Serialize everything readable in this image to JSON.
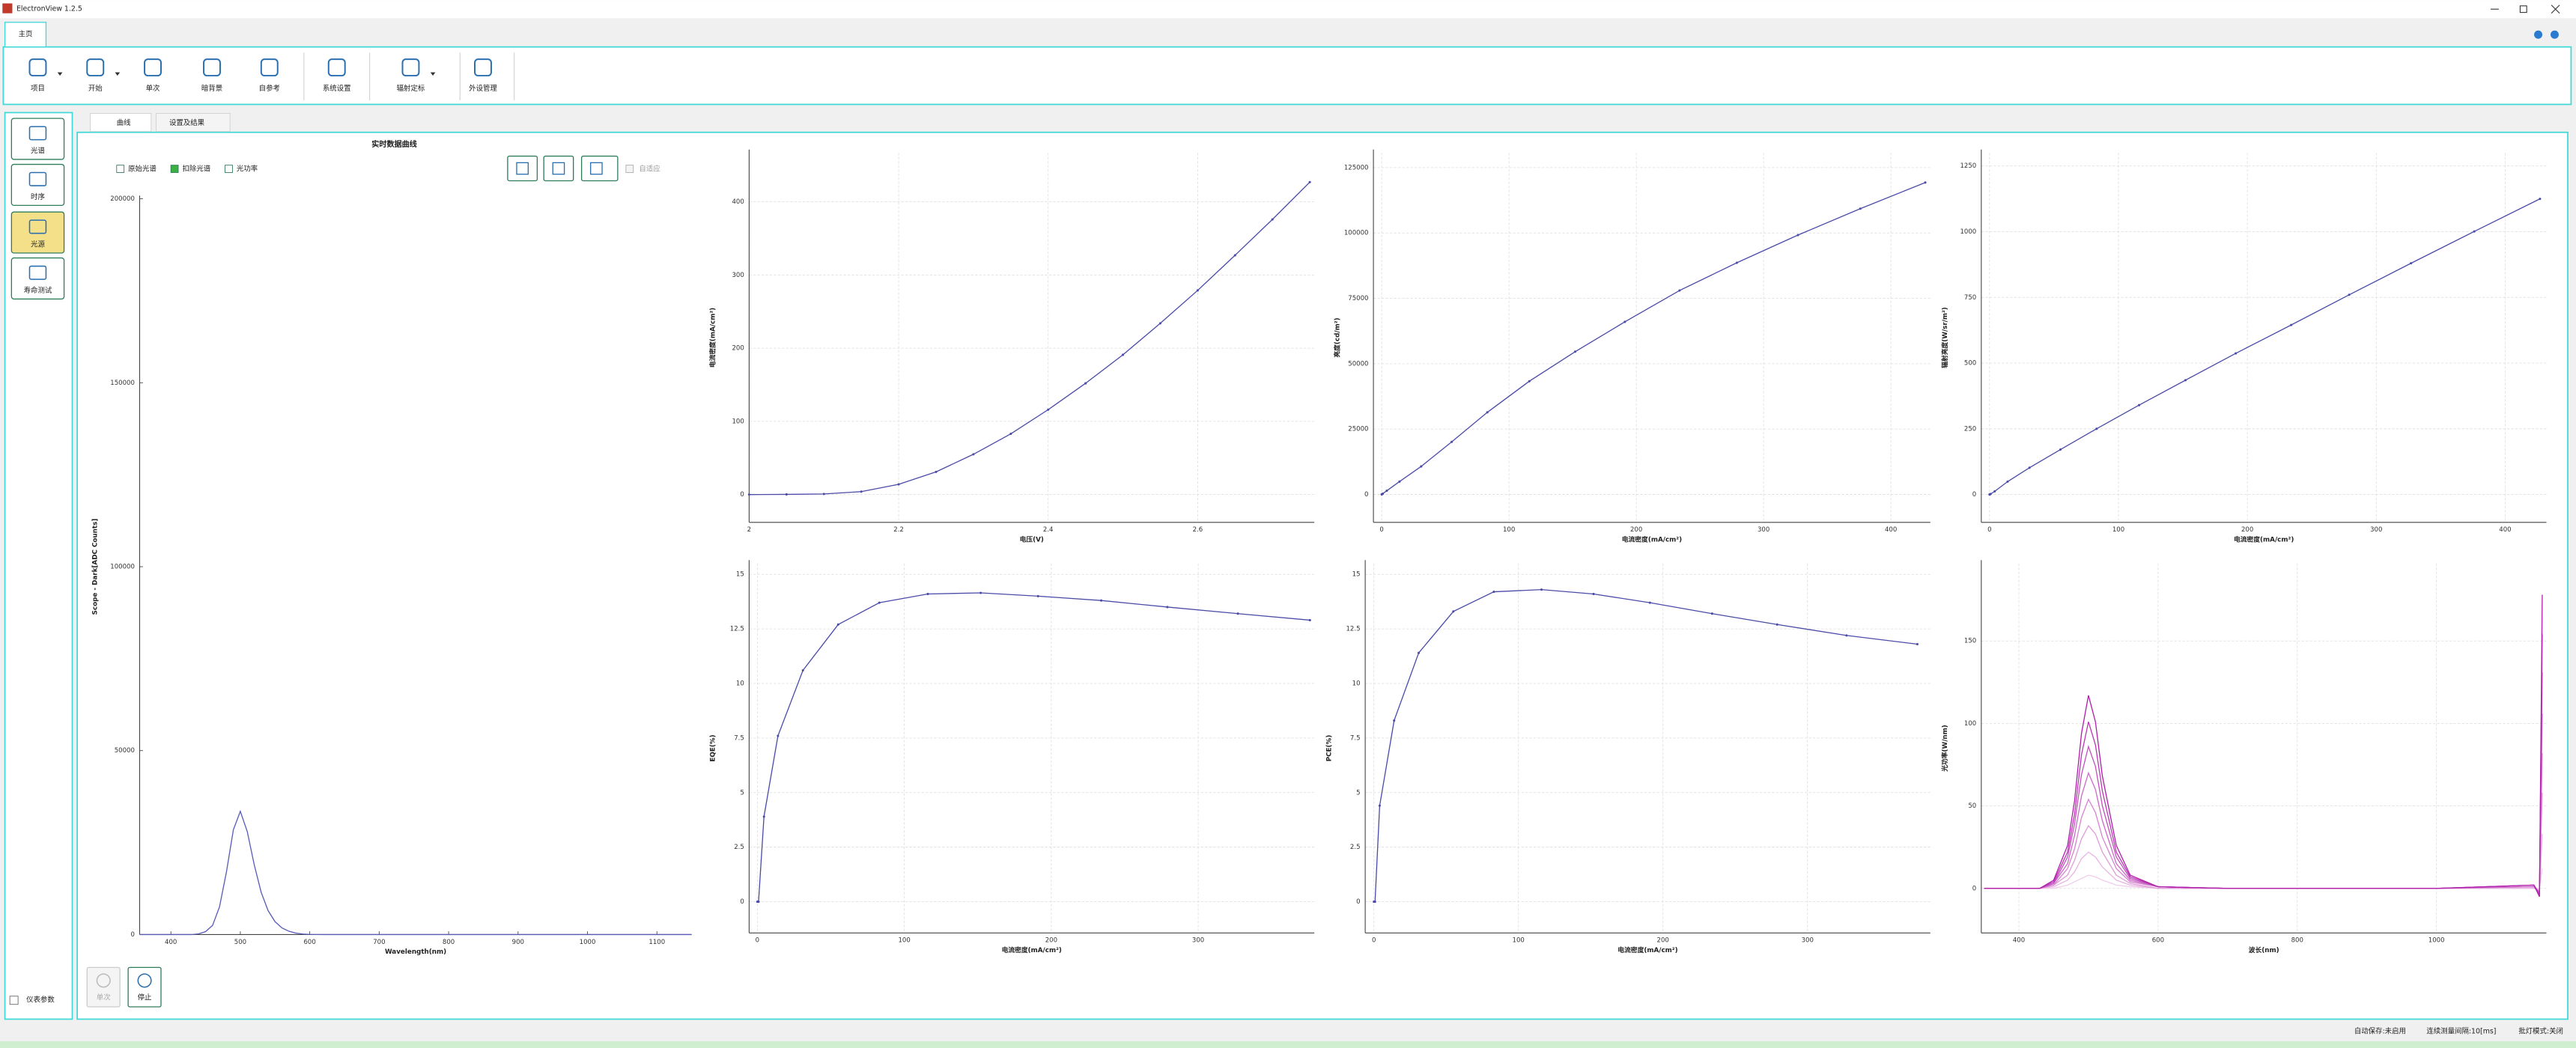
{
  "window": {
    "title": "ElectronView 1.2.5"
  },
  "tabs": [
    "主页"
  ],
  "toolbar": [
    {
      "label": "项目",
      "dropdown": true
    },
    {
      "label": "开始",
      "dropdown": true
    },
    {
      "label": "单次",
      "dropdown": false
    },
    {
      "label": "暗背景",
      "dropdown": false
    },
    {
      "label": "自参考",
      "dropdown": false
    },
    {
      "label": "系统设置",
      "dropdown": false
    },
    {
      "label": "辐射定标",
      "dropdown": true
    },
    {
      "label": "外设管理",
      "dropdown": false
    }
  ],
  "sidebar": [
    {
      "label": "光谱",
      "active": false
    },
    {
      "label": "时序",
      "active": false
    },
    {
      "label": "光源",
      "active": true
    },
    {
      "label": "寿命测试",
      "active": false
    }
  ],
  "sidebar_checkbox": {
    "label": "仪表参数",
    "checked": false
  },
  "subtabs": [
    "曲线",
    "设置及结果"
  ],
  "main_chart": {
    "type": "line",
    "title": "实时数据曲线",
    "options": [
      {
        "label": "原始光谱",
        "checked": false
      },
      {
        "label": "扣除光谱",
        "checked": true
      },
      {
        "label": "光功率",
        "checked": false
      }
    ],
    "autofit": {
      "label": "自适应",
      "checked": false
    },
    "xlabel": "Wavelength(nm)",
    "ylabel": "Scope - Dark[ADC Counts]",
    "x": [
      355,
      430,
      440,
      450,
      460,
      470,
      480,
      490,
      500,
      510,
      520,
      530,
      540,
      550,
      560,
      570,
      580,
      590,
      600,
      620,
      1150
    ],
    "series": [
      {
        "color": "#5a5ab8",
        "values": [
          0,
          0,
          200,
          800,
          2500,
          7500,
          17000,
          28500,
          33500,
          28000,
          19000,
          11500,
          6500,
          3500,
          1800,
          900,
          400,
          150,
          50,
          0,
          0
        ]
      }
    ],
    "xlim": [
      355,
      1150
    ],
    "ylim": [
      0,
      200000
    ],
    "xticks": [
      400,
      500,
      600,
      700,
      800,
      900,
      1000,
      1100
    ],
    "yticks": [
      0,
      50000,
      100000,
      150000,
      200000
    ],
    "grid": false,
    "markers": false
  },
  "charts": [
    {
      "type": "line",
      "xlabel": "电压(V)",
      "ylabel": "电流密度(mA/cm²)",
      "x": [
        2.0,
        2.05,
        2.1,
        2.15,
        2.2,
        2.25,
        2.3,
        2.35,
        2.4,
        2.45,
        2.5,
        2.55,
        2.6,
        2.65,
        2.7,
        2.75
      ],
      "series": [
        {
          "color": "#4b4ba8",
          "values": [
            0,
            0.2,
            0.8,
            4,
            14,
            31,
            55,
            83,
            116,
            152,
            191,
            234,
            279,
            327,
            376,
            427
          ]
        }
      ],
      "xlim": [
        2,
        2.756
      ],
      "ylim": [
        -38,
        467
      ],
      "xticks": [
        2,
        2.2,
        2.4,
        2.6
      ],
      "yticks": [
        0,
        100,
        200,
        300,
        400
      ],
      "grid": true,
      "markers": true
    },
    {
      "type": "line",
      "xlabel": "电流密度(mA/cm²)",
      "ylabel": "亮度(cd/m²)",
      "x": [
        0,
        0.2,
        0.8,
        4,
        14,
        31,
        55,
        83,
        116,
        152,
        191,
        234,
        279,
        327,
        376,
        427
      ],
      "series": [
        {
          "color": "#4b4ba8",
          "values": [
            0,
            50,
            250,
            1400,
            4900,
            10700,
            20100,
            31400,
            43300,
            54600,
            66000,
            78000,
            88600,
            99200,
            109300,
            119300
          ]
        }
      ],
      "xlim": [
        -6.5,
        431
      ],
      "ylim": [
        -10700,
        130650
      ],
      "xticks": [
        0,
        100,
        200,
        300,
        400
      ],
      "yticks": [
        0,
        25000,
        50000,
        75000,
        100000,
        125000
      ],
      "grid": true,
      "markers": true
    },
    {
      "type": "line",
      "xlabel": "电流密度(mA/cm²)",
      "ylabel": "辐射亮度(W/sr/m²)",
      "x": [
        0,
        0.2,
        0.8,
        4,
        14,
        31,
        55,
        83,
        116,
        152,
        191,
        234,
        279,
        327,
        376,
        427
      ],
      "series": [
        {
          "color": "#4b4ba8",
          "values": [
            0,
            0.5,
            2,
            12,
            49,
            102,
            171,
            250,
            340,
            435,
            537,
            645,
            760,
            880,
            1001,
            1125
          ]
        }
      ],
      "xlim": [
        -6.4,
        432
      ],
      "ylim": [
        -106,
        1300
      ],
      "xticks": [
        0,
        100,
        200,
        300,
        400
      ],
      "yticks": [
        0,
        250,
        500,
        750,
        1000,
        1250
      ],
      "grid": true,
      "markers": true
    },
    {
      "type": "line",
      "xlabel": "电流密度(mA/cm²)",
      "ylabel": "EQE(%)",
      "x": [
        0,
        0.8,
        4.5,
        14,
        31,
        55,
        83,
        116,
        152,
        191,
        234,
        279,
        327,
        376
      ],
      "series": [
        {
          "color": "#4b4ba8",
          "values": [
            0,
            0,
            3.9,
            7.6,
            10.6,
            12.7,
            13.7,
            14.1,
            14.15,
            14.0,
            13.8,
            13.5,
            13.2,
            12.9
          ]
        }
      ],
      "xlim": [
        -5.6,
        379
      ],
      "ylim": [
        -1.43,
        15.5
      ],
      "xticks": [
        0,
        100,
        200,
        300
      ],
      "yticks": [
        0,
        2.5,
        5,
        7.5,
        10,
        12.5,
        15
      ],
      "grid": true,
      "markers": true
    },
    {
      "type": "line",
      "xlabel": "电流密度(mA/cm²)",
      "ylabel": "PCE(%)",
      "x": [
        0,
        0.8,
        4,
        14,
        31,
        55,
        83,
        116,
        152,
        191,
        234,
        279,
        327,
        376
      ],
      "series": [
        {
          "color": "#4b4ba8",
          "values": [
            0,
            0,
            4.4,
            8.3,
            11.4,
            13.3,
            14.2,
            14.3,
            14.1,
            13.7,
            13.2,
            12.7,
            12.2,
            11.8
          ]
        }
      ],
      "xlim": [
        -6,
        385
      ],
      "ylim": [
        -1.43,
        15.5
      ],
      "xticks": [
        0,
        100,
        200,
        300
      ],
      "yticks": [
        0,
        2.5,
        5,
        7.5,
        10,
        12.5,
        15
      ],
      "grid": true,
      "markers": true
    },
    {
      "type": "line",
      "xlabel": "波长(nm)",
      "ylabel": "光功率(W/nm)",
      "x": [
        350,
        430,
        450,
        470,
        480,
        490,
        500,
        510,
        520,
        540,
        560,
        600,
        700,
        1000,
        1140,
        1148,
        1152
      ],
      "series": [
        {
          "color": "#f0cdea",
          "values": [
            0,
            0,
            0,
            2,
            4,
            6,
            8,
            7,
            5,
            2,
            1,
            0,
            0,
            0,
            0,
            0,
            12
          ]
        },
        {
          "color": "#e8b5e2",
          "values": [
            0,
            0,
            1,
            5,
            10,
            18,
            22,
            19,
            13,
            5,
            2,
            0,
            0,
            0,
            0,
            -1,
            33
          ]
        },
        {
          "color": "#df9cd9",
          "values": [
            0,
            0,
            2,
            8,
            17,
            30,
            38,
            33,
            22,
            8,
            3,
            0,
            0,
            0,
            1,
            -2,
            58
          ]
        },
        {
          "color": "#d684d0",
          "values": [
            0,
            0,
            2,
            12,
            24,
            43,
            54,
            46,
            31,
            12,
            4,
            1,
            0,
            0,
            1,
            -2,
            82
          ]
        },
        {
          "color": "#cc6bc7",
          "values": [
            0,
            0,
            3,
            15,
            32,
            56,
            70,
            60,
            41,
            15,
            5,
            1,
            0,
            0,
            1,
            -3,
            106
          ]
        },
        {
          "color": "#c353be",
          "values": [
            0,
            0,
            3,
            19,
            39,
            69,
            86,
            74,
            50,
            19,
            6,
            1,
            0,
            0,
            2,
            -3,
            131
          ]
        },
        {
          "color": "#b93ab4",
          "values": [
            0,
            0,
            4,
            22,
            45,
            81,
            101,
            87,
            59,
            22,
            7,
            1,
            0,
            0,
            2,
            -4,
            154
          ]
        },
        {
          "color": "#b020ab",
          "values": [
            0,
            0,
            5,
            26,
            53,
            94,
            117,
            101,
            68,
            26,
            8,
            1,
            0,
            0,
            2,
            -5,
            178
          ]
        }
      ],
      "xlim": [
        346,
        1158
      ],
      "ylim": [
        -27,
        197
      ],
      "xticks": [
        400,
        600,
        800,
        1000
      ],
      "yticks": [
        0,
        50,
        100,
        150
      ],
      "grid": true,
      "markers": false
    }
  ],
  "bottom_buttons": [
    {
      "label": "单次",
      "enabled": false
    },
    {
      "label": "停止",
      "enabled": true
    }
  ],
  "status": [
    "自动保存:未启用",
    "连续测量间隔:10[ms]",
    "批灯模式:关闭"
  ]
}
